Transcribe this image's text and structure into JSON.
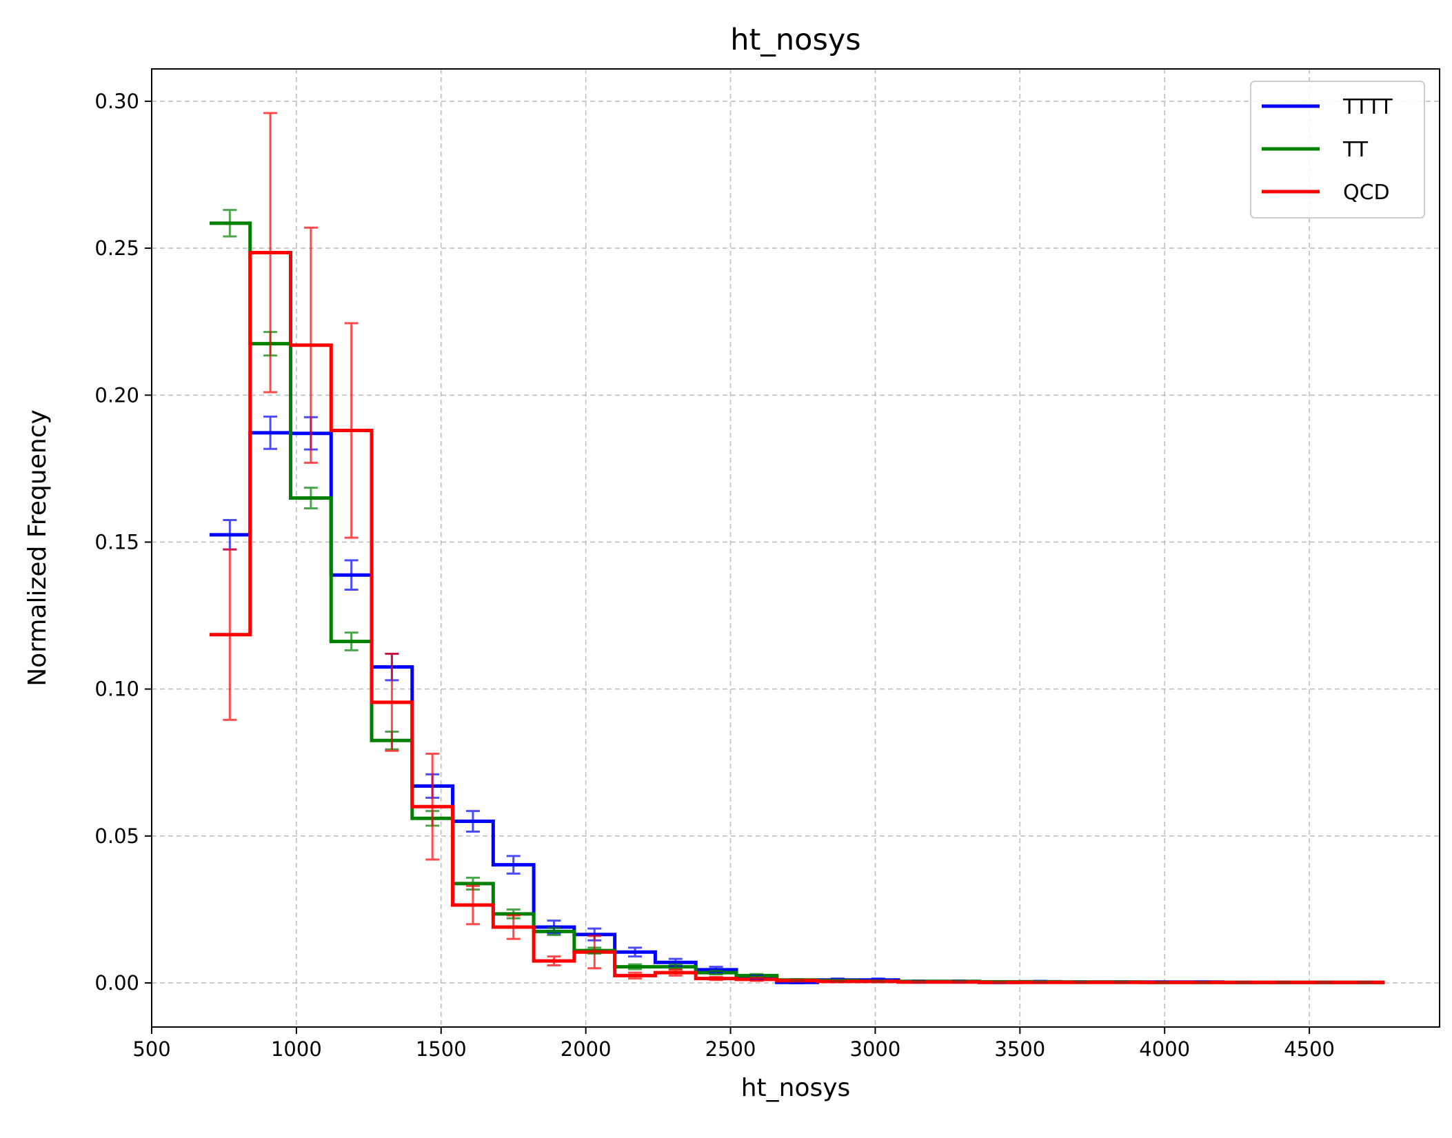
{
  "chart_data": {
    "type": "histogram",
    "title": "ht_nosys",
    "xlabel": "ht_nosys",
    "ylabel": "Normalized Frequency",
    "xlim": [
      500,
      4950
    ],
    "ylim": [
      -0.015,
      0.311
    ],
    "xticks": [
      500,
      1000,
      1500,
      2000,
      2500,
      3000,
      3500,
      4000,
      4500
    ],
    "yticks": [
      0.0,
      0.05,
      0.1,
      0.15,
      0.2,
      0.25,
      0.3
    ],
    "grid": true,
    "legend_position": "top-right",
    "bin_edges": [
      700,
      840,
      980,
      1120,
      1260,
      1400,
      1540,
      1680,
      1820,
      1960,
      2100,
      2240,
      2380,
      2520,
      2660,
      2800,
      2940,
      3080,
      3220,
      3360,
      3500,
      3640,
      3780,
      3920,
      4060,
      4200,
      4340,
      4480,
      4620,
      4760
    ],
    "series": [
      {
        "name": "TTTT",
        "color": "#0000ff",
        "values": [
          0.1525,
          0.1872,
          0.187,
          0.1388,
          0.1075,
          0.067,
          0.055,
          0.0402,
          0.019,
          0.0165,
          0.0105,
          0.007,
          0.0045,
          0.002,
          0.0002,
          0.001,
          0.001,
          0.0005,
          0.0005,
          0.0002,
          0.0004,
          0.0003,
          0.0003,
          0.0003,
          0.0003,
          0.0002,
          0.0002,
          0.0002,
          0.0002
        ],
        "errors": [
          0.005,
          0.0055,
          0.0055,
          0.005,
          0.0045,
          0.004,
          0.0035,
          0.003,
          0.0022,
          0.002,
          0.0015,
          0.0012,
          0.001,
          0.0007,
          0.0003,
          0.0005,
          0.0005,
          0.0003,
          0.0003,
          0.0002,
          0.0003,
          0.0002,
          0.0002,
          0.0002,
          0.0002,
          0.0002,
          0.0002,
          0.0002,
          0.0002
        ]
      },
      {
        "name": "TT",
        "color": "#008000",
        "values": [
          0.2585,
          0.2175,
          0.165,
          0.1162,
          0.0825,
          0.056,
          0.0338,
          0.0235,
          0.0175,
          0.011,
          0.0055,
          0.0055,
          0.0035,
          0.0025,
          0.001,
          0.0008,
          0.0006,
          0.0005,
          0.0005,
          0.0004,
          0.0004,
          0.0003,
          0.0003,
          0.0002,
          0.0002,
          0.0002,
          0.0002,
          0.0002,
          0.0002
        ],
        "errors": [
          0.0045,
          0.004,
          0.0035,
          0.003,
          0.003,
          0.0025,
          0.002,
          0.0015,
          0.0012,
          0.001,
          0.0008,
          0.0008,
          0.0006,
          0.0005,
          0.0003,
          0.0003,
          0.0002,
          0.0002,
          0.0002,
          0.0002,
          0.0002,
          0.0002,
          0.0002,
          0.0002,
          0.0002,
          0.0002,
          0.0002,
          0.0002,
          0.0002
        ]
      },
      {
        "name": "QCD",
        "color": "#ff0000",
        "values": [
          0.1185,
          0.2485,
          0.217,
          0.188,
          0.0955,
          0.06,
          0.0265,
          0.019,
          0.0075,
          0.0105,
          0.0025,
          0.0035,
          0.0015,
          0.0012,
          0.0008,
          0.0005,
          0.0005,
          0.0003,
          0.0003,
          0.0002,
          0.0002,
          0.0002,
          0.0002,
          0.0002,
          0.0002,
          0.0002,
          0.0002,
          0.0002,
          0.0002
        ],
        "errors": [
          0.029,
          0.0475,
          0.04,
          0.0365,
          0.0165,
          0.018,
          0.0065,
          0.004,
          0.0015,
          0.0055,
          0.001,
          0.001,
          0.0005,
          0.0005,
          0.0003,
          0.0002,
          0.0002,
          0.0002,
          0.0002,
          0.0002,
          0.0002,
          0.0002,
          0.0002,
          0.0002,
          0.0002,
          0.0002,
          0.0002,
          0.0002,
          0.0002
        ]
      }
    ]
  }
}
